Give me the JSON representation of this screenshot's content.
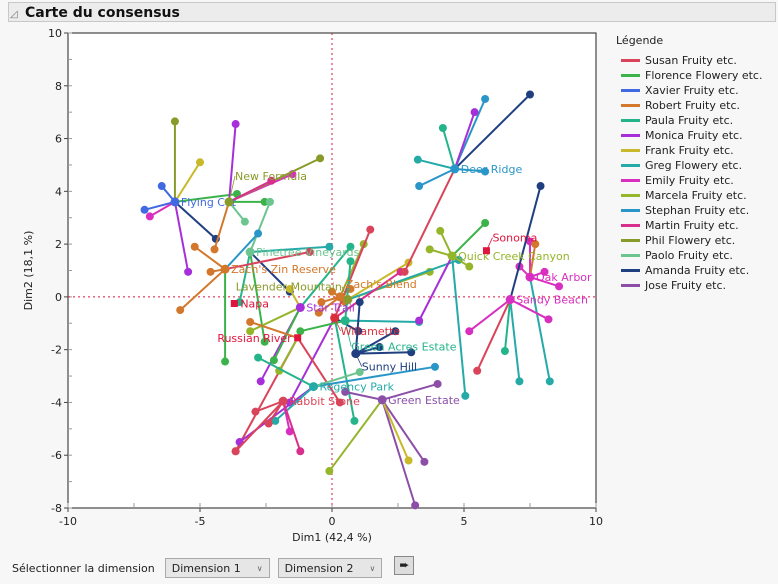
{
  "header": {
    "title": "Carte du consensus"
  },
  "controls": {
    "label": "Sélectionner la dimension",
    "dim_x": "Dimension 1",
    "dim_y": "Dimension 2"
  },
  "chart_data": {
    "type": "scatter",
    "title": "",
    "xlabel": "Dim1  (42,4 %)",
    "ylabel": "Dim2  (18,1 %)",
    "xlim": [
      -10,
      10
    ],
    "ylim": [
      -8,
      10
    ],
    "xticks": [
      "-10",
      "-5",
      "0",
      "5",
      "10"
    ],
    "yticks": [
      "-8",
      "-6",
      "-4",
      "-2",
      "0",
      "2",
      "4",
      "6",
      "8",
      "10"
    ],
    "grid": false,
    "reference_lines": {
      "x": 0,
      "y": 0,
      "color": "#e0143c"
    },
    "legend": {
      "title": "Légende",
      "placement": "right"
    },
    "assessors": [
      {
        "name": "Susan Fruity etc.",
        "color": "#d9445a"
      },
      {
        "name": "Florence Flowery etc.",
        "color": "#3cb34a"
      },
      {
        "name": "Xavier Fruity etc.",
        "color": "#4169e1"
      },
      {
        "name": "Robert Fruity etc.",
        "color": "#d2772b"
      },
      {
        "name": "Paula Fruity etc.",
        "color": "#24b48a"
      },
      {
        "name": "Monica Fruity etc.",
        "color": "#a62fd9"
      },
      {
        "name": "Frank Fruity etc.",
        "color": "#c8b92a"
      },
      {
        "name": "Greg Flowery etc.",
        "color": "#25aaa8"
      },
      {
        "name": "Emily Fruity etc.",
        "color": "#d82fc0"
      },
      {
        "name": "Marcela Fruity etc.",
        "color": "#95b52a"
      },
      {
        "name": "Stephan Fruity etc.",
        "color": "#2a96c8"
      },
      {
        "name": "Martin Fruity etc.",
        "color": "#d92f8c"
      },
      {
        "name": "Phil Flowery etc.",
        "color": "#8a9a2a"
      },
      {
        "name": "Paolo Fruity etc.",
        "color": "#6cc48f"
      },
      {
        "name": "Amanda Fruity etc.",
        "color": "#1f3f80"
      },
      {
        "name": "Jose Fruity etc.",
        "color": "#8b4fa8"
      }
    ],
    "products": [
      {
        "name": "Flying Cat",
        "color": "#4169e1",
        "x": -5.95,
        "y": 3.6,
        "points": [
          [
            2,
            -7.1,
            3.3
          ],
          [
            2,
            -6.45,
            4.2
          ],
          [
            12,
            -5.95,
            6.65
          ],
          [
            5,
            -5.45,
            0.95
          ],
          [
            6,
            -5.0,
            5.1
          ],
          [
            8,
            -6.9,
            3.05
          ],
          [
            14,
            -4.4,
            2.2
          ],
          [
            1,
            -3.6,
            3.9
          ]
        ]
      },
      {
        "name": "New Formula",
        "color": "#8a9a2a",
        "x": -3.9,
        "y": 3.6,
        "points": [
          [
            5,
            -3.65,
            6.55
          ],
          [
            8,
            -1.5,
            4.65
          ],
          [
            12,
            -0.45,
            5.25
          ],
          [
            1,
            -2.55,
            3.6
          ],
          [
            3,
            -4.45,
            1.8
          ],
          [
            13,
            -3.3,
            2.85
          ],
          [
            11,
            -2.3,
            4.4
          ]
        ]
      },
      {
        "name": "Pinetree Vineyards",
        "color": "#6cc48f",
        "x": -3.1,
        "y": 1.7,
        "points": [
          [
            13,
            -2.35,
            3.6
          ],
          [
            7,
            -0.1,
            1.9
          ],
          [
            1,
            -2.55,
            -1.7
          ],
          [
            4,
            -3.5,
            -0.2
          ],
          [
            14,
            -1.6,
            0.2
          ]
        ]
      },
      {
        "name": "Zach's Zin Reserve",
        "color": "#d2772b",
        "x": -4.05,
        "y": 1.05,
        "points": [
          [
            3,
            -5.75,
            -0.5
          ],
          [
            3,
            -5.2,
            1.9
          ],
          [
            0,
            -0.85,
            1.7
          ],
          [
            1,
            -4.05,
            -2.45
          ],
          [
            3,
            -4.6,
            0.95
          ],
          [
            10,
            -2.8,
            2.4
          ]
        ]
      },
      {
        "name": "Napa",
        "color": "#e0143c",
        "x": -3.7,
        "y": -0.25,
        "square": true,
        "points": []
      },
      {
        "name": "Star Trail",
        "color": "#a62fd9",
        "x": -1.2,
        "y": -0.4,
        "points": [
          [
            5,
            -2.7,
            -3.2
          ],
          [
            4,
            0.7,
            1.9
          ],
          [
            9,
            -3.1,
            -1.3
          ],
          [
            6,
            -1.6,
            0.3
          ],
          [
            1,
            -2.2,
            -2.4
          ]
        ]
      },
      {
        "name": "Zach's Blend",
        "color": "#d2772b",
        "x": 0.3,
        "y": 0.0,
        "points": [
          [
            3,
            -0.4,
            -0.2
          ],
          [
            3,
            0.0,
            0.2
          ],
          [
            3,
            0.5,
            -0.2
          ],
          [
            3,
            -0.5,
            -0.6
          ],
          [
            3,
            0.7,
            0.3
          ],
          [
            9,
            1.2,
            2.0
          ]
        ]
      },
      {
        "name": "Lavender Mountain",
        "color": "#8a9a2a",
        "x": 0.6,
        "y": -0.1,
        "points": [
          [
            9,
            3.7,
            0.95
          ],
          [
            6,
            2.9,
            1.3
          ],
          [
            7,
            4.8,
            1.4
          ]
        ]
      },
      {
        "name": "Willamette",
        "color": "#d92f3c",
        "x": 0.1,
        "y": -0.8,
        "points": [
          [
            0,
            1.45,
            2.55
          ],
          [
            11,
            2.6,
            0.95
          ],
          [
            4,
            0.85,
            -4.7
          ],
          [
            5,
            -1.6,
            -4.0
          ],
          [
            14,
            1.0,
            -1.3
          ]
        ]
      },
      {
        "name": "Green Acres Estate",
        "color": "#24b48a",
        "x": 0.5,
        "y": -0.9,
        "points": [
          [
            4,
            0.7,
            1.35
          ],
          [
            7,
            3.3,
            -0.95
          ],
          [
            1,
            -1.2,
            -1.3
          ]
        ]
      },
      {
        "name": "Russian River",
        "color": "#e0143c",
        "x": -1.3,
        "y": -1.55,
        "square": true,
        "points": [
          [
            0,
            -3.65,
            -5.85
          ],
          [
            9,
            -2.0,
            -2.8
          ],
          [
            3,
            -3.1,
            -0.95
          ],
          [
            0,
            0.3,
            -4.0
          ]
        ]
      },
      {
        "name": "Sunny Hill",
        "color": "#1f3f80",
        "x": 0.9,
        "y": -2.15,
        "points": [
          [
            14,
            3.0,
            -2.1
          ],
          [
            14,
            2.4,
            -1.3
          ],
          [
            14,
            1.05,
            -0.2
          ],
          [
            14,
            1.8,
            -1.9
          ]
        ]
      },
      {
        "name": "Regency Park",
        "color": "#25aaa8",
        "x": -0.7,
        "y": -3.4,
        "points": [
          [
            10,
            3.9,
            -2.65
          ],
          [
            5,
            -3.5,
            -5.5
          ],
          [
            7,
            -2.15,
            -4.7
          ],
          [
            13,
            1.05,
            -2.85
          ],
          [
            4,
            -2.8,
            -2.3
          ]
        ]
      },
      {
        "name": "Rabbit Stone",
        "color": "#d9445a",
        "x": -1.85,
        "y": -3.95,
        "points": [
          [
            0,
            -3.65,
            -5.85
          ],
          [
            0,
            -2.9,
            -4.35
          ],
          [
            8,
            -1.6,
            -5.1
          ],
          [
            11,
            -1.2,
            -5.85
          ],
          [
            0,
            -2.4,
            -4.8
          ]
        ]
      },
      {
        "name": "Green Estate",
        "color": "#8b4fa8",
        "x": 1.9,
        "y": -3.9,
        "points": [
          [
            15,
            3.15,
            -7.9
          ],
          [
            15,
            4.0,
            -3.3
          ],
          [
            9,
            -0.1,
            -6.6
          ],
          [
            15,
            3.5,
            -6.25
          ],
          [
            15,
            0.5,
            -3.6
          ],
          [
            6,
            2.9,
            -6.2
          ]
        ]
      },
      {
        "name": "Deer Ridge",
        "color": "#2a96c8",
        "x": 4.65,
        "y": 4.85,
        "points": [
          [
            14,
            7.5,
            7.67
          ],
          [
            10,
            5.8,
            7.5
          ],
          [
            5,
            5.4,
            7.0
          ],
          [
            4,
            4.2,
            6.4
          ],
          [
            7,
            3.25,
            5.2
          ],
          [
            10,
            3.3,
            4.2
          ],
          [
            10,
            5.8,
            4.75
          ],
          [
            0,
            2.75,
            0.95
          ]
        ]
      },
      {
        "name": "Quick Creek Canyon",
        "color": "#95b52a",
        "x": 4.55,
        "y": 1.55,
        "points": [
          [
            1,
            5.8,
            2.8
          ],
          [
            9,
            3.7,
            1.8
          ],
          [
            9,
            5.2,
            1.15
          ],
          [
            5,
            3.3,
            -0.9
          ],
          [
            9,
            4.1,
            2.5
          ],
          [
            7,
            5.05,
            -3.75
          ]
        ]
      },
      {
        "name": "Sonoma",
        "color": "#e0143c",
        "x": 5.85,
        "y": 1.75,
        "square": true,
        "points": []
      },
      {
        "name": "Oak Arbor",
        "color": "#d82fc0",
        "x": 7.5,
        "y": 0.75,
        "points": [
          [
            8,
            7.5,
            2.1
          ],
          [
            8,
            8.6,
            0.4
          ],
          [
            8,
            7.1,
            1.15
          ],
          [
            7,
            8.25,
            -3.2
          ],
          [
            8,
            8.05,
            0.95
          ],
          [
            3,
            7.7,
            2.0
          ]
        ]
      },
      {
        "name": "Sandy Beach",
        "color": "#d82fc0",
        "x": 6.75,
        "y": -0.1,
        "points": [
          [
            7,
            7.1,
            -3.2
          ],
          [
            8,
            8.2,
            -0.85
          ],
          [
            8,
            5.2,
            -1.3
          ],
          [
            4,
            6.55,
            -2.05
          ],
          [
            14,
            7.9,
            4.2
          ],
          [
            0,
            5.5,
            -2.8
          ]
        ]
      }
    ]
  }
}
